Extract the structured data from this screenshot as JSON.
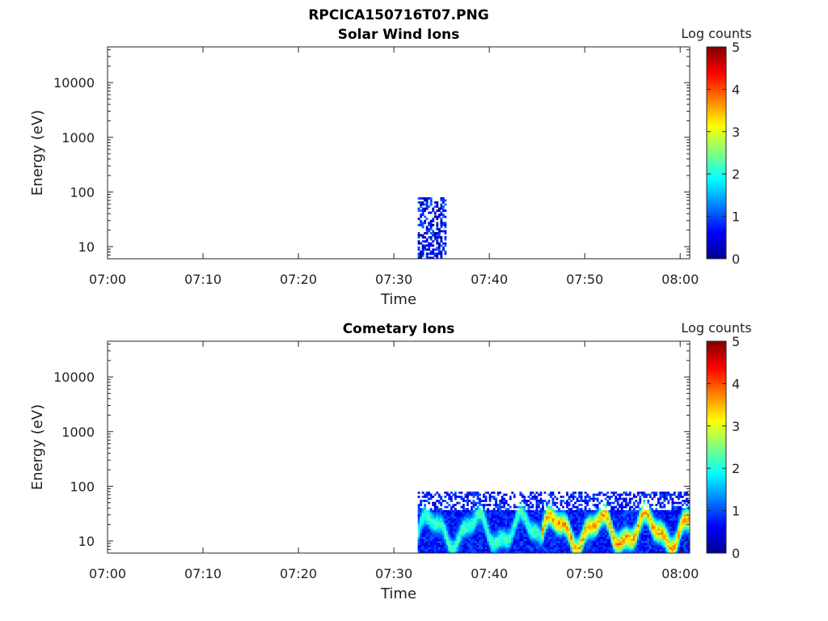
{
  "figure_title": "RPCICA150716T07.PNG",
  "chart_data": [
    {
      "type": "heatmap",
      "title": "Solar Wind Ions",
      "xlabel": "Time",
      "ylabel": "Energy (eV)",
      "x_ticks": [
        "07:00",
        "07:10",
        "07:20",
        "07:30",
        "07:40",
        "07:50",
        "08:00"
      ],
      "x_range": [
        "07:00",
        "08:01"
      ],
      "y_scale": "log",
      "y_ticks": [
        10,
        100,
        1000,
        10000
      ],
      "y_ticklabels": [
        "10",
        "100",
        "1000",
        "10000"
      ],
      "ylim": [
        6,
        45000
      ],
      "colorbar": {
        "label": "Log counts",
        "ticks": [
          "0",
          "1",
          "2",
          "3",
          "4",
          "5"
        ],
        "range": [
          0,
          5
        ],
        "colormap": "jet"
      },
      "regions": [
        {
          "t_start": "07:32.5",
          "t_end": "07:35.5",
          "e_low": 6,
          "e_high": 80,
          "log_counts_range": [
            0,
            1.2
          ],
          "pattern": "sparse"
        }
      ]
    },
    {
      "type": "heatmap",
      "title": "Cometary Ions",
      "xlabel": "Time",
      "ylabel": "Energy (eV)",
      "x_ticks": [
        "07:00",
        "07:10",
        "07:20",
        "07:30",
        "07:40",
        "07:50",
        "08:00"
      ],
      "x_range": [
        "07:00",
        "08:01"
      ],
      "y_scale": "log",
      "y_ticks": [
        10,
        100,
        1000,
        10000
      ],
      "y_ticklabels": [
        "10",
        "100",
        "1000",
        "10000"
      ],
      "ylim": [
        6,
        45000
      ],
      "colorbar": {
        "label": "Log counts",
        "ticks": [
          "0",
          "1",
          "2",
          "3",
          "4",
          "5"
        ],
        "range": [
          0,
          5
        ],
        "colormap": "jet"
      },
      "regions": [
        {
          "t_start": "07:32.5",
          "t_end": "07:45.5",
          "e_low": 6,
          "e_high": 80,
          "log_counts_range": [
            0,
            2.5
          ],
          "peak_energy": 15,
          "pattern": "oscillating"
        },
        {
          "t_start": "07:45.5",
          "t_end": "08:01",
          "e_low": 6,
          "e_high": 80,
          "log_counts_range": [
            0,
            4.0
          ],
          "peak_energy": 15,
          "pattern": "oscillating"
        }
      ]
    }
  ]
}
